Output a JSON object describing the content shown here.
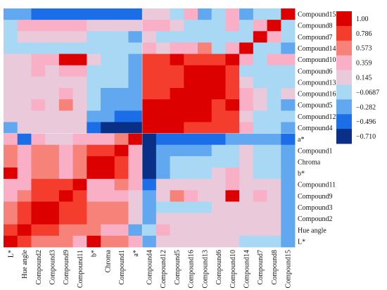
{
  "chart_data": {
    "type": "heatmap",
    "title": "",
    "col_labels": [
      "L*",
      "Hue angle",
      "Compound2",
      "Compound3",
      "Compound9",
      "Compound11",
      "b*",
      "Chroma",
      "Compound1",
      "a*",
      "Compound4",
      "Compound12",
      "Compound5",
      "Compound16",
      "Compound13",
      "Compound6",
      "Compound10",
      "Compound14",
      "Compound7",
      "Compound8",
      "Compound15"
    ],
    "row_labels": [
      "Compound15",
      "Compound8",
      "Compound7",
      "Compound14",
      "Compound10",
      "Compound6",
      "Compound13",
      "Compound16",
      "Compound5",
      "Compound12",
      "Compound4",
      "a*",
      "Compound1",
      "Chroma",
      "b*",
      "Compound11",
      "Compound9",
      "Compound3",
      "Compound2",
      "Hue angle",
      "L*"
    ],
    "values": [
      [
        -0.282,
        -0.282,
        -0.496,
        -0.496,
        -0.496,
        -0.496,
        -0.496,
        -0.496,
        -0.496,
        -0.496,
        0.145,
        0.145,
        -0.0687,
        0.359,
        -0.282,
        -0.0687,
        0.359,
        -0.282,
        -0.0687,
        -0.0687,
        1.0
      ],
      [
        -0.0687,
        0.359,
        0.359,
        0.359,
        0.359,
        0.359,
        0.145,
        0.145,
        0.145,
        0.145,
        0.359,
        0.359,
        0.145,
        -0.0687,
        -0.0687,
        -0.0687,
        0.359,
        -0.0687,
        0.359,
        1.0,
        -0.0687
      ],
      [
        -0.0687,
        0.145,
        0.145,
        0.145,
        0.145,
        0.145,
        -0.0687,
        -0.0687,
        -0.0687,
        -0.282,
        0.145,
        -0.0687,
        -0.0687,
        -0.0687,
        -0.0687,
        -0.0687,
        -0.0687,
        -0.0687,
        1.0,
        0.359,
        -0.0687
      ],
      [
        -0.0687,
        -0.0687,
        -0.0687,
        -0.0687,
        -0.0687,
        -0.0687,
        -0.0687,
        -0.0687,
        -0.0687,
        -0.0687,
        0.359,
        0.145,
        0.359,
        0.359,
        0.573,
        -0.0687,
        0.359,
        1.0,
        -0.0687,
        -0.0687,
        -0.282
      ],
      [
        0.145,
        0.145,
        0.359,
        0.359,
        1.0,
        1.0,
        0.145,
        -0.0687,
        -0.0687,
        -0.282,
        0.786,
        0.786,
        1.0,
        0.786,
        0.786,
        0.786,
        1.0,
        0.359,
        -0.0687,
        0.359,
        0.359
      ],
      [
        0.145,
        0.145,
        0.359,
        0.145,
        0.359,
        0.359,
        -0.0687,
        -0.0687,
        -0.0687,
        -0.282,
        0.786,
        0.786,
        0.786,
        1.0,
        1.0,
        1.0,
        0.786,
        -0.0687,
        -0.0687,
        -0.0687,
        -0.0687
      ],
      [
        0.145,
        0.145,
        0.145,
        0.145,
        0.145,
        0.145,
        -0.0687,
        -0.0687,
        -0.0687,
        -0.282,
        0.786,
        0.786,
        0.786,
        1.0,
        1.0,
        1.0,
        0.786,
        0.145,
        -0.0687,
        -0.0687,
        -0.0687
      ],
      [
        0.145,
        0.145,
        0.145,
        0.145,
        0.359,
        0.145,
        -0.0687,
        -0.282,
        -0.282,
        -0.282,
        0.786,
        0.786,
        1.0,
        1.0,
        1.0,
        1.0,
        0.786,
        0.359,
        0.145,
        -0.0687,
        0.145
      ],
      [
        0.145,
        0.145,
        0.359,
        0.145,
        0.573,
        0.145,
        -0.0687,
        -0.282,
        -0.282,
        -0.282,
        1.0,
        1.0,
        1.0,
        1.0,
        1.0,
        0.786,
        1.0,
        0.359,
        0.145,
        -0.0687,
        -0.282
      ],
      [
        0.145,
        0.145,
        0.145,
        0.145,
        0.145,
        0.145,
        -0.282,
        -0.282,
        -0.496,
        -0.496,
        1.0,
        1.0,
        1.0,
        1.0,
        1.0,
        0.786,
        0.786,
        0.145,
        -0.0687,
        -0.0687,
        -0.0687
      ],
      [
        -0.282,
        0.145,
        0.145,
        0.145,
        0.145,
        0.145,
        -0.496,
        -0.71,
        -0.71,
        -0.71,
        1.0,
        1.0,
        1.0,
        0.786,
        0.786,
        0.786,
        0.786,
        0.359,
        -0.0687,
        -0.0687,
        -0.282
      ],
      [
        0.359,
        -0.496,
        0.359,
        0.145,
        0.145,
        0.359,
        0.359,
        0.359,
        0.573,
        1.0,
        -0.71,
        -0.496,
        -0.496,
        -0.496,
        -0.496,
        -0.496,
        -0.282,
        -0.282,
        -0.282,
        -0.282,
        -0.496
      ],
      [
        0.573,
        0.359,
        0.573,
        0.573,
        0.359,
        0.573,
        0.786,
        0.786,
        1.0,
        0.359,
        -0.71,
        -0.282,
        -0.282,
        -0.282,
        -0.282,
        -0.0687,
        -0.0687,
        0.145,
        -0.0687,
        -0.0687,
        -0.282
      ],
      [
        0.573,
        0.359,
        0.573,
        0.573,
        0.359,
        0.573,
        1.0,
        1.0,
        0.786,
        0.359,
        -0.71,
        -0.282,
        -0.0687,
        -0.0687,
        -0.0687,
        -0.0687,
        -0.0687,
        0.145,
        -0.0687,
        -0.0687,
        -0.282
      ],
      [
        1.0,
        0.359,
        0.573,
        0.573,
        0.359,
        0.573,
        1.0,
        1.0,
        0.786,
        0.359,
        -0.71,
        -0.282,
        -0.0687,
        -0.0687,
        -0.0687,
        0.145,
        0.359,
        0.145,
        -0.0687,
        -0.0687,
        -0.282
      ],
      [
        0.359,
        0.359,
        0.786,
        0.786,
        0.786,
        1.0,
        0.359,
        0.359,
        0.573,
        0.359,
        -0.496,
        0.145,
        0.145,
        0.145,
        0.145,
        0.145,
        0.359,
        0.145,
        0.145,
        0.145,
        -0.282
      ],
      [
        0.359,
        0.573,
        0.786,
        0.786,
        1.0,
        0.786,
        0.359,
        0.359,
        0.359,
        0.145,
        -0.282,
        0.145,
        0.573,
        0.359,
        0.145,
        0.145,
        1.0,
        0.145,
        0.359,
        0.145,
        -0.282
      ],
      [
        0.573,
        0.786,
        1.0,
        1.0,
        0.786,
        0.786,
        0.573,
        0.573,
        0.573,
        0.145,
        -0.282,
        -0.0687,
        -0.0687,
        -0.0687,
        -0.0687,
        0.145,
        0.145,
        0.145,
        0.145,
        0.145,
        -0.282
      ],
      [
        0.573,
        0.786,
        1.0,
        1.0,
        0.786,
        0.786,
        0.573,
        0.573,
        0.573,
        0.145,
        -0.282,
        0.145,
        0.145,
        0.145,
        0.145,
        0.145,
        0.145,
        0.145,
        0.145,
        0.145,
        -0.282
      ],
      [
        0.786,
        1.0,
        0.786,
        0.786,
        0.573,
        0.573,
        0.573,
        0.359,
        0.359,
        -0.282,
        -0.0687,
        0.359,
        0.145,
        0.145,
        0.145,
        0.145,
        0.145,
        0.145,
        0.145,
        0.145,
        -0.282
      ],
      [
        1.0,
        0.786,
        0.573,
        0.573,
        0.573,
        0.359,
        1.0,
        0.573,
        0.573,
        0.359,
        -0.282,
        0.145,
        0.145,
        0.145,
        0.145,
        0.145,
        0.145,
        -0.0687,
        -0.0687,
        -0.0687,
        -0.282
      ]
    ],
    "legend": {
      "ticks": [
        "1.00",
        "0.786",
        "0.573",
        "0.359",
        "0.145",
        "−0.0687",
        "−0.282",
        "−0.496",
        "−0.710"
      ],
      "tick_values": [
        1.0,
        0.786,
        0.573,
        0.359,
        0.145,
        -0.0687,
        -0.282,
        -0.496,
        -0.71
      ],
      "colors": [
        "#dd0000",
        "#f53d2d",
        "#f7827a",
        "#f9b0c7",
        "#e9c9da",
        "#a9d8f4",
        "#62a8f0",
        "#1b6ee8",
        "#0a2f86"
      ],
      "position": "right"
    },
    "colors": {
      "grid_background": "#a9d8f4",
      "separator": "#ffffff"
    }
  }
}
